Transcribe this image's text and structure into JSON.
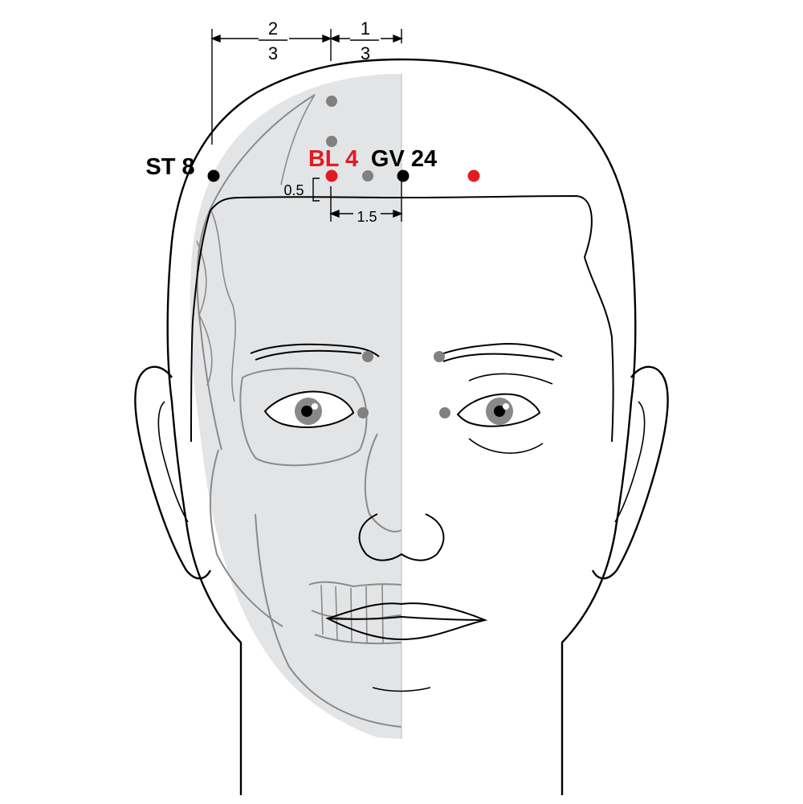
{
  "points": {
    "st8": {
      "label": "ST 8"
    },
    "bl4": {
      "label": "BL 4"
    },
    "gv24": {
      "label": "GV 24"
    }
  },
  "measurements": {
    "frac_two_thirds": {
      "num": "2",
      "den": "3"
    },
    "frac_one_third": {
      "num": "1",
      "den": "3"
    },
    "vertical_offset": "0.5",
    "horizontal_offset": "1.5"
  },
  "colors": {
    "primary_point": "#e11b22",
    "reference_point": "#000000",
    "other_point": "#808080",
    "skull_fill": "#e3e4e6",
    "outline": "#000000",
    "skull_line": "#8a8a8a"
  }
}
